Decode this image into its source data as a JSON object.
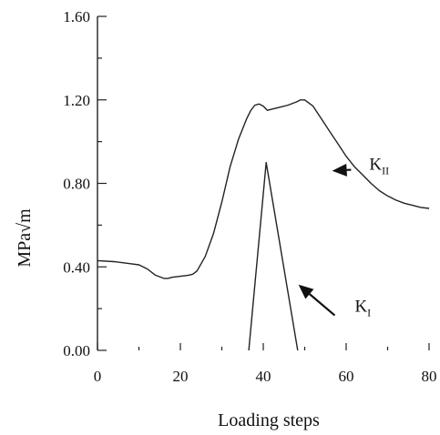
{
  "chart_data": {
    "type": "line",
    "title": "",
    "xlabel": "Loading steps",
    "ylabel": "MPa√m",
    "xlim": [
      0,
      80
    ],
    "ylim": [
      0,
      1.6
    ],
    "xticks": [
      0,
      20,
      40,
      60,
      80
    ],
    "xtick_labels": [
      "0",
      "20",
      "40",
      "60",
      "80"
    ],
    "xticks_minor": [
      10,
      30,
      50,
      70
    ],
    "yticks": [
      0,
      0.4,
      0.8,
      1.2,
      1.6
    ],
    "ytick_labels": [
      "0.00",
      "0.40",
      "0.80",
      "1.20",
      "1.60"
    ],
    "yticks_minor": [
      0.2,
      0.6,
      1.0,
      1.4
    ],
    "grid": false,
    "legend": "none",
    "series": [
      {
        "name": "K_II",
        "x": [
          0,
          4,
          8,
          10,
          12,
          14,
          16,
          17,
          18,
          20,
          22,
          23,
          24,
          26,
          28,
          30,
          32,
          34,
          36,
          37,
          38,
          39,
          40,
          41,
          42,
          44,
          46,
          48,
          49,
          50,
          52,
          54,
          56,
          58,
          60,
          62,
          64,
          66,
          68,
          70,
          72,
          74,
          76,
          78,
          80
        ],
        "y": [
          0.43,
          0.425,
          0.415,
          0.41,
          0.39,
          0.36,
          0.345,
          0.345,
          0.35,
          0.355,
          0.36,
          0.365,
          0.38,
          0.45,
          0.56,
          0.71,
          0.88,
          1.01,
          1.11,
          1.15,
          1.175,
          1.18,
          1.17,
          1.15,
          1.155,
          1.165,
          1.175,
          1.19,
          1.2,
          1.2,
          1.17,
          1.11,
          1.05,
          0.99,
          0.93,
          0.88,
          0.84,
          0.8,
          0.765,
          0.74,
          0.72,
          0.705,
          0.695,
          0.685,
          0.68
        ]
      },
      {
        "name": "K_I",
        "x": [
          36.5,
          40.7,
          48.3
        ],
        "y": [
          0.0,
          0.9,
          0.0
        ]
      }
    ],
    "annotations": [
      {
        "label": "K",
        "subscript": "II",
        "points_to": "K_II",
        "text_at": [
          62.5,
          0.9
        ]
      },
      {
        "label": "K",
        "subscript": "I",
        "points_to": "K_I",
        "text_at": [
          59,
          0.22
        ]
      }
    ]
  }
}
